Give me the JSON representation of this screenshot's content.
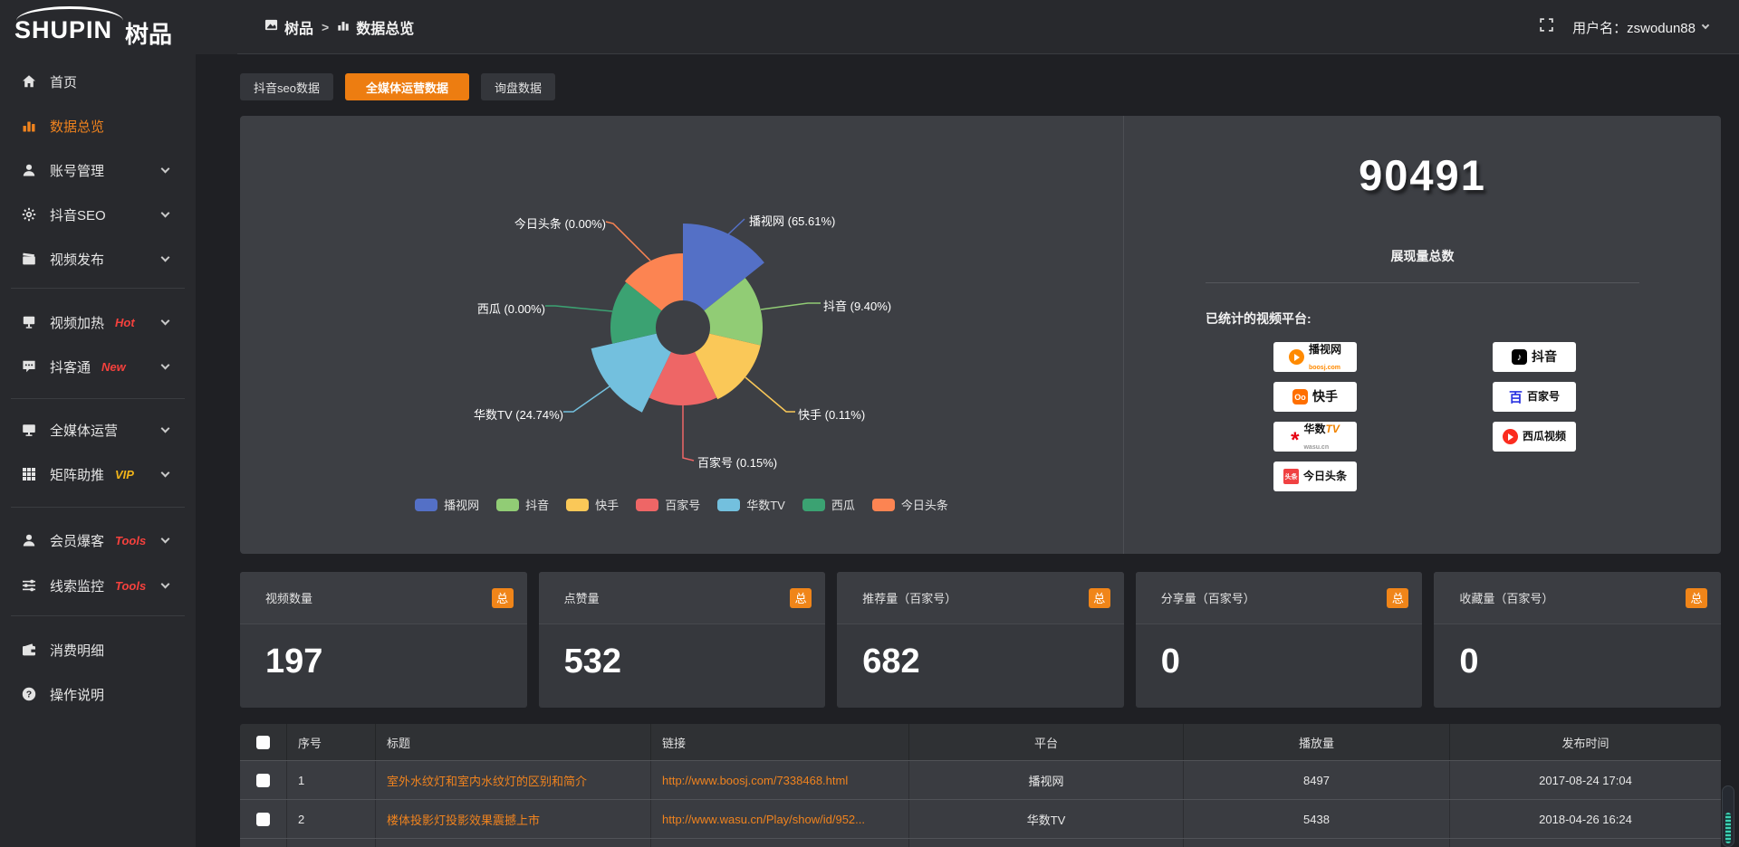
{
  "topbar": {
    "breadcrumb": [
      {
        "label": "树品"
      },
      {
        "label": "数据总览"
      }
    ],
    "separator": ">",
    "username": "用户名：zswodun88"
  },
  "sidebar": {
    "logo_main": "SHUPIN",
    "logo_sub": "树品",
    "items": [
      {
        "label": "首页",
        "icon": "home-icon"
      },
      {
        "label": "数据总览",
        "icon": "bar-chart-icon",
        "active": true
      },
      {
        "label": "账号管理",
        "icon": "user-icon",
        "chevron": true
      },
      {
        "label": "抖音SEO",
        "icon": "gear-icon",
        "chevron": true
      },
      {
        "label": "视频发布",
        "icon": "clapperboard-icon",
        "chevron": true
      },
      {
        "label": "视频加热",
        "icon": "screen-icon",
        "badge": "Hot",
        "chevron": true
      },
      {
        "label": "抖客通",
        "icon": "chat-icon",
        "badge": "New",
        "chevron": true
      },
      {
        "label": "全媒体运营",
        "icon": "monitor-icon",
        "chevron": true
      },
      {
        "label": "矩阵助推",
        "icon": "grid-icon",
        "badge": "VIP",
        "chevron": true
      },
      {
        "label": "会员爆客",
        "icon": "member-icon",
        "badge": "Tools",
        "chevron": true
      },
      {
        "label": "线索监控",
        "icon": "sliders-icon",
        "badge": "Tools",
        "chevron": true
      },
      {
        "label": "消费明细",
        "icon": "wallet-icon"
      },
      {
        "label": "操作说明",
        "icon": "help-icon"
      }
    ]
  },
  "tabs": [
    {
      "label": "抖音seo数据",
      "active": false
    },
    {
      "label": "全媒体运营数据",
      "active": true
    },
    {
      "label": "询盘数据",
      "active": false
    }
  ],
  "chart_data": {
    "type": "pie",
    "style": "nightingale-rose-donut",
    "inner_radius": 30,
    "legend_position": "bottom",
    "slices": [
      {
        "name": "播视网",
        "pct": 65.61,
        "color": "#5470c6",
        "display_radius": 115
      },
      {
        "name": "抖音",
        "pct": 9.4,
        "color": "#91cc75",
        "display_radius": 88
      },
      {
        "name": "快手",
        "pct": 0.11,
        "color": "#fac858",
        "display_radius": 88
      },
      {
        "name": "百家号",
        "pct": 0.15,
        "color": "#ee6666",
        "display_radius": 86
      },
      {
        "name": "华数TV",
        "pct": 24.74,
        "color": "#73c0de",
        "display_radius": 104
      },
      {
        "name": "西瓜",
        "pct": 0.0,
        "color": "#3ba272",
        "display_radius": 80
      },
      {
        "name": "今日头条",
        "pct": 0.0,
        "color": "#fc8452",
        "display_radius": 82
      }
    ]
  },
  "overview": {
    "total_value": "90491",
    "total_label": "展现量总数",
    "platforms_title": "已统计的视频平台:",
    "platforms": [
      {
        "name": "播视网",
        "sub": "boosj.com"
      },
      {
        "name": "抖音",
        "sub": ""
      },
      {
        "name": "快手",
        "sub": ""
      },
      {
        "name": "百家号",
        "sub": ""
      },
      {
        "name": "华数TV",
        "sub": "wasu.cn"
      },
      {
        "name": "西瓜视频",
        "sub": ""
      },
      {
        "name": "今日头条",
        "sub": ""
      }
    ]
  },
  "stat_cards": [
    {
      "label": "视频数量",
      "badge": "总",
      "value": "197"
    },
    {
      "label": "点赞量",
      "badge": "总",
      "value": "532"
    },
    {
      "label": "推荐量（百家号）",
      "badge": "总",
      "value": "682"
    },
    {
      "label": "分享量（百家号）",
      "badge": "总",
      "value": "0"
    },
    {
      "label": "收藏量（百家号）",
      "badge": "总",
      "value": "0"
    }
  ],
  "table": {
    "headers": [
      "序号",
      "标题",
      "链接",
      "平台",
      "播放量",
      "发布时间"
    ],
    "rows": [
      {
        "index": "1",
        "title": "室外水纹灯和室内水纹灯的区别和简介",
        "link": "http://www.boosj.com/7338468.html",
        "platform": "播视网",
        "plays": "8497",
        "published": "2017-08-24 17:04"
      },
      {
        "index": "2",
        "title": "楼体投影灯投影效果震撼上市",
        "link": "http://www.wasu.cn/Play/show/id/952...",
        "platform": "华数TV",
        "plays": "5438",
        "published": "2018-04-26 16:24"
      }
    ]
  },
  "accent_color": "#ed7d11"
}
